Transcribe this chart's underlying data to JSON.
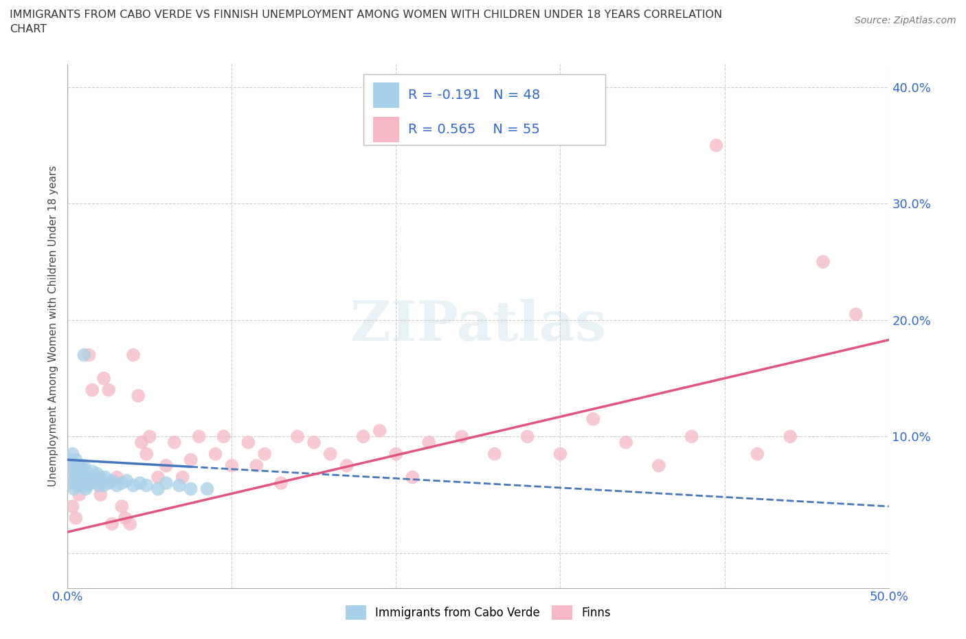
{
  "title_line1": "IMMIGRANTS FROM CABO VERDE VS FINNISH UNEMPLOYMENT AMONG WOMEN WITH CHILDREN UNDER 18 YEARS CORRELATION",
  "title_line2": "CHART",
  "source": "Source: ZipAtlas.com",
  "ylabel": "Unemployment Among Women with Children Under 18 years",
  "xlim": [
    0.0,
    0.5
  ],
  "ylim": [
    -0.03,
    0.42
  ],
  "xticks": [
    0.0,
    0.1,
    0.2,
    0.3,
    0.4,
    0.5
  ],
  "xticklabels": [
    "0.0%",
    "",
    "",
    "",
    "",
    "50.0%"
  ],
  "yticks": [
    0.0,
    0.1,
    0.2,
    0.3,
    0.4
  ],
  "yticklabels": [
    "",
    "10.0%",
    "20.0%",
    "30.0%",
    "40.0%"
  ],
  "R_blue": -0.191,
  "N_blue": 48,
  "R_pink": 0.565,
  "N_pink": 55,
  "color_blue": "#a8d0e8",
  "color_pink": "#f5b8c4",
  "color_blue_line": "#4477bb",
  "color_pink_line": "#e05580",
  "legend_label_blue": "Immigrants from Cabo Verde",
  "legend_label_pink": "Finns",
  "blue_scatter_x": [
    0.001,
    0.002,
    0.002,
    0.003,
    0.003,
    0.004,
    0.004,
    0.005,
    0.005,
    0.006,
    0.006,
    0.007,
    0.007,
    0.008,
    0.008,
    0.009,
    0.009,
    0.01,
    0.01,
    0.011,
    0.011,
    0.012,
    0.012,
    0.013,
    0.014,
    0.015,
    0.016,
    0.017,
    0.018,
    0.019,
    0.02,
    0.021,
    0.022,
    0.023,
    0.025,
    0.027,
    0.03,
    0.033,
    0.036,
    0.04,
    0.044,
    0.048,
    0.055,
    0.06,
    0.068,
    0.075,
    0.085,
    0.01
  ],
  "blue_scatter_y": [
    0.08,
    0.075,
    0.065,
    0.085,
    0.06,
    0.072,
    0.055,
    0.08,
    0.065,
    0.07,
    0.058,
    0.075,
    0.062,
    0.068,
    0.058,
    0.072,
    0.062,
    0.075,
    0.065,
    0.06,
    0.055,
    0.068,
    0.058,
    0.065,
    0.06,
    0.07,
    0.065,
    0.062,
    0.068,
    0.058,
    0.065,
    0.062,
    0.058,
    0.065,
    0.06,
    0.062,
    0.058,
    0.06,
    0.062,
    0.058,
    0.06,
    0.058,
    0.055,
    0.06,
    0.058,
    0.055,
    0.055,
    0.17
  ],
  "pink_scatter_x": [
    0.003,
    0.005,
    0.007,
    0.01,
    0.013,
    0.015,
    0.018,
    0.02,
    0.022,
    0.025,
    0.027,
    0.03,
    0.033,
    0.035,
    0.038,
    0.04,
    0.043,
    0.045,
    0.048,
    0.05,
    0.055,
    0.06,
    0.065,
    0.07,
    0.075,
    0.08,
    0.09,
    0.095,
    0.1,
    0.11,
    0.115,
    0.12,
    0.13,
    0.14,
    0.15,
    0.16,
    0.17,
    0.18,
    0.19,
    0.2,
    0.21,
    0.22,
    0.24,
    0.26,
    0.28,
    0.3,
    0.32,
    0.34,
    0.36,
    0.38,
    0.395,
    0.42,
    0.44,
    0.46,
    0.48
  ],
  "pink_scatter_y": [
    0.04,
    0.03,
    0.05,
    0.06,
    0.17,
    0.14,
    0.06,
    0.05,
    0.15,
    0.14,
    0.025,
    0.065,
    0.04,
    0.03,
    0.025,
    0.17,
    0.135,
    0.095,
    0.085,
    0.1,
    0.065,
    0.075,
    0.095,
    0.065,
    0.08,
    0.1,
    0.085,
    0.1,
    0.075,
    0.095,
    0.075,
    0.085,
    0.06,
    0.1,
    0.095,
    0.085,
    0.075,
    0.1,
    0.105,
    0.085,
    0.065,
    0.095,
    0.1,
    0.085,
    0.1,
    0.085,
    0.115,
    0.095,
    0.075,
    0.1,
    0.35,
    0.085,
    0.1,
    0.25,
    0.205
  ],
  "blue_line_x0": 0.0,
  "blue_line_x1": 0.5,
  "blue_line_y0": 0.08,
  "blue_line_y1": 0.04,
  "pink_line_x0": 0.0,
  "pink_line_x1": 0.5,
  "pink_line_y0": 0.018,
  "pink_line_y1": 0.183
}
